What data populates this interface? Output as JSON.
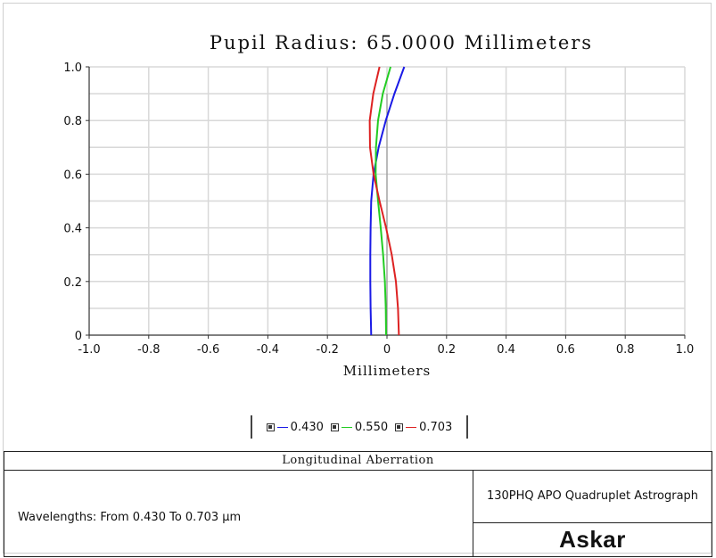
{
  "chart_data": {
    "type": "line",
    "title": "Pupil Radius:  65.0000  Millimeters",
    "xlabel": "Millimeters",
    "ylabel": "",
    "xlim": [
      -1.0,
      1.0
    ],
    "ylim": [
      0,
      1.0
    ],
    "x_ticks": [
      "-1.0",
      "-0.8",
      "-0.6",
      "-0.4",
      "-0.2",
      "0",
      "0.2",
      "0.4",
      "0.6",
      "0.8",
      "1.0"
    ],
    "y_ticks": [
      "0",
      "0.2",
      "0.4",
      "0.6",
      "0.8",
      "1.0"
    ],
    "grid": true,
    "legend_placement": "bottom-center",
    "series": [
      {
        "name": "0.430",
        "color": "#1a1ae6",
        "points": [
          [
            -0.053,
            0.0
          ],
          [
            -0.055,
            0.1
          ],
          [
            -0.056,
            0.2
          ],
          [
            -0.056,
            0.3
          ],
          [
            -0.055,
            0.4
          ],
          [
            -0.053,
            0.5
          ],
          [
            -0.045,
            0.6
          ],
          [
            -0.028,
            0.7
          ],
          [
            -0.004,
            0.8
          ],
          [
            0.025,
            0.9
          ],
          [
            0.058,
            1.0
          ]
        ]
      },
      {
        "name": "0.550",
        "color": "#22cc22",
        "points": [
          [
            -0.003,
            0.0
          ],
          [
            -0.004,
            0.1
          ],
          [
            -0.007,
            0.2
          ],
          [
            -0.013,
            0.3
          ],
          [
            -0.021,
            0.4
          ],
          [
            -0.03,
            0.5
          ],
          [
            -0.038,
            0.6
          ],
          [
            -0.037,
            0.7
          ],
          [
            -0.03,
            0.8
          ],
          [
            -0.014,
            0.9
          ],
          [
            0.012,
            1.0
          ]
        ]
      },
      {
        "name": "0.703",
        "color": "#dd2222",
        "points": [
          [
            0.04,
            0.0
          ],
          [
            0.037,
            0.1
          ],
          [
            0.03,
            0.2
          ],
          [
            0.016,
            0.3
          ],
          [
            -0.003,
            0.4
          ],
          [
            -0.025,
            0.5
          ],
          [
            -0.045,
            0.6
          ],
          [
            -0.057,
            0.7
          ],
          [
            -0.058,
            0.8
          ],
          [
            -0.046,
            0.9
          ],
          [
            -0.025,
            1.0
          ]
        ]
      }
    ]
  },
  "table": {
    "header": "Longitudinal Aberration",
    "wavelengths": "Wavelengths:  From 0.430 To 0.703  μm",
    "lens_name": "130PHQ APO Quadruplet Astrograph",
    "logo": "Askar"
  }
}
